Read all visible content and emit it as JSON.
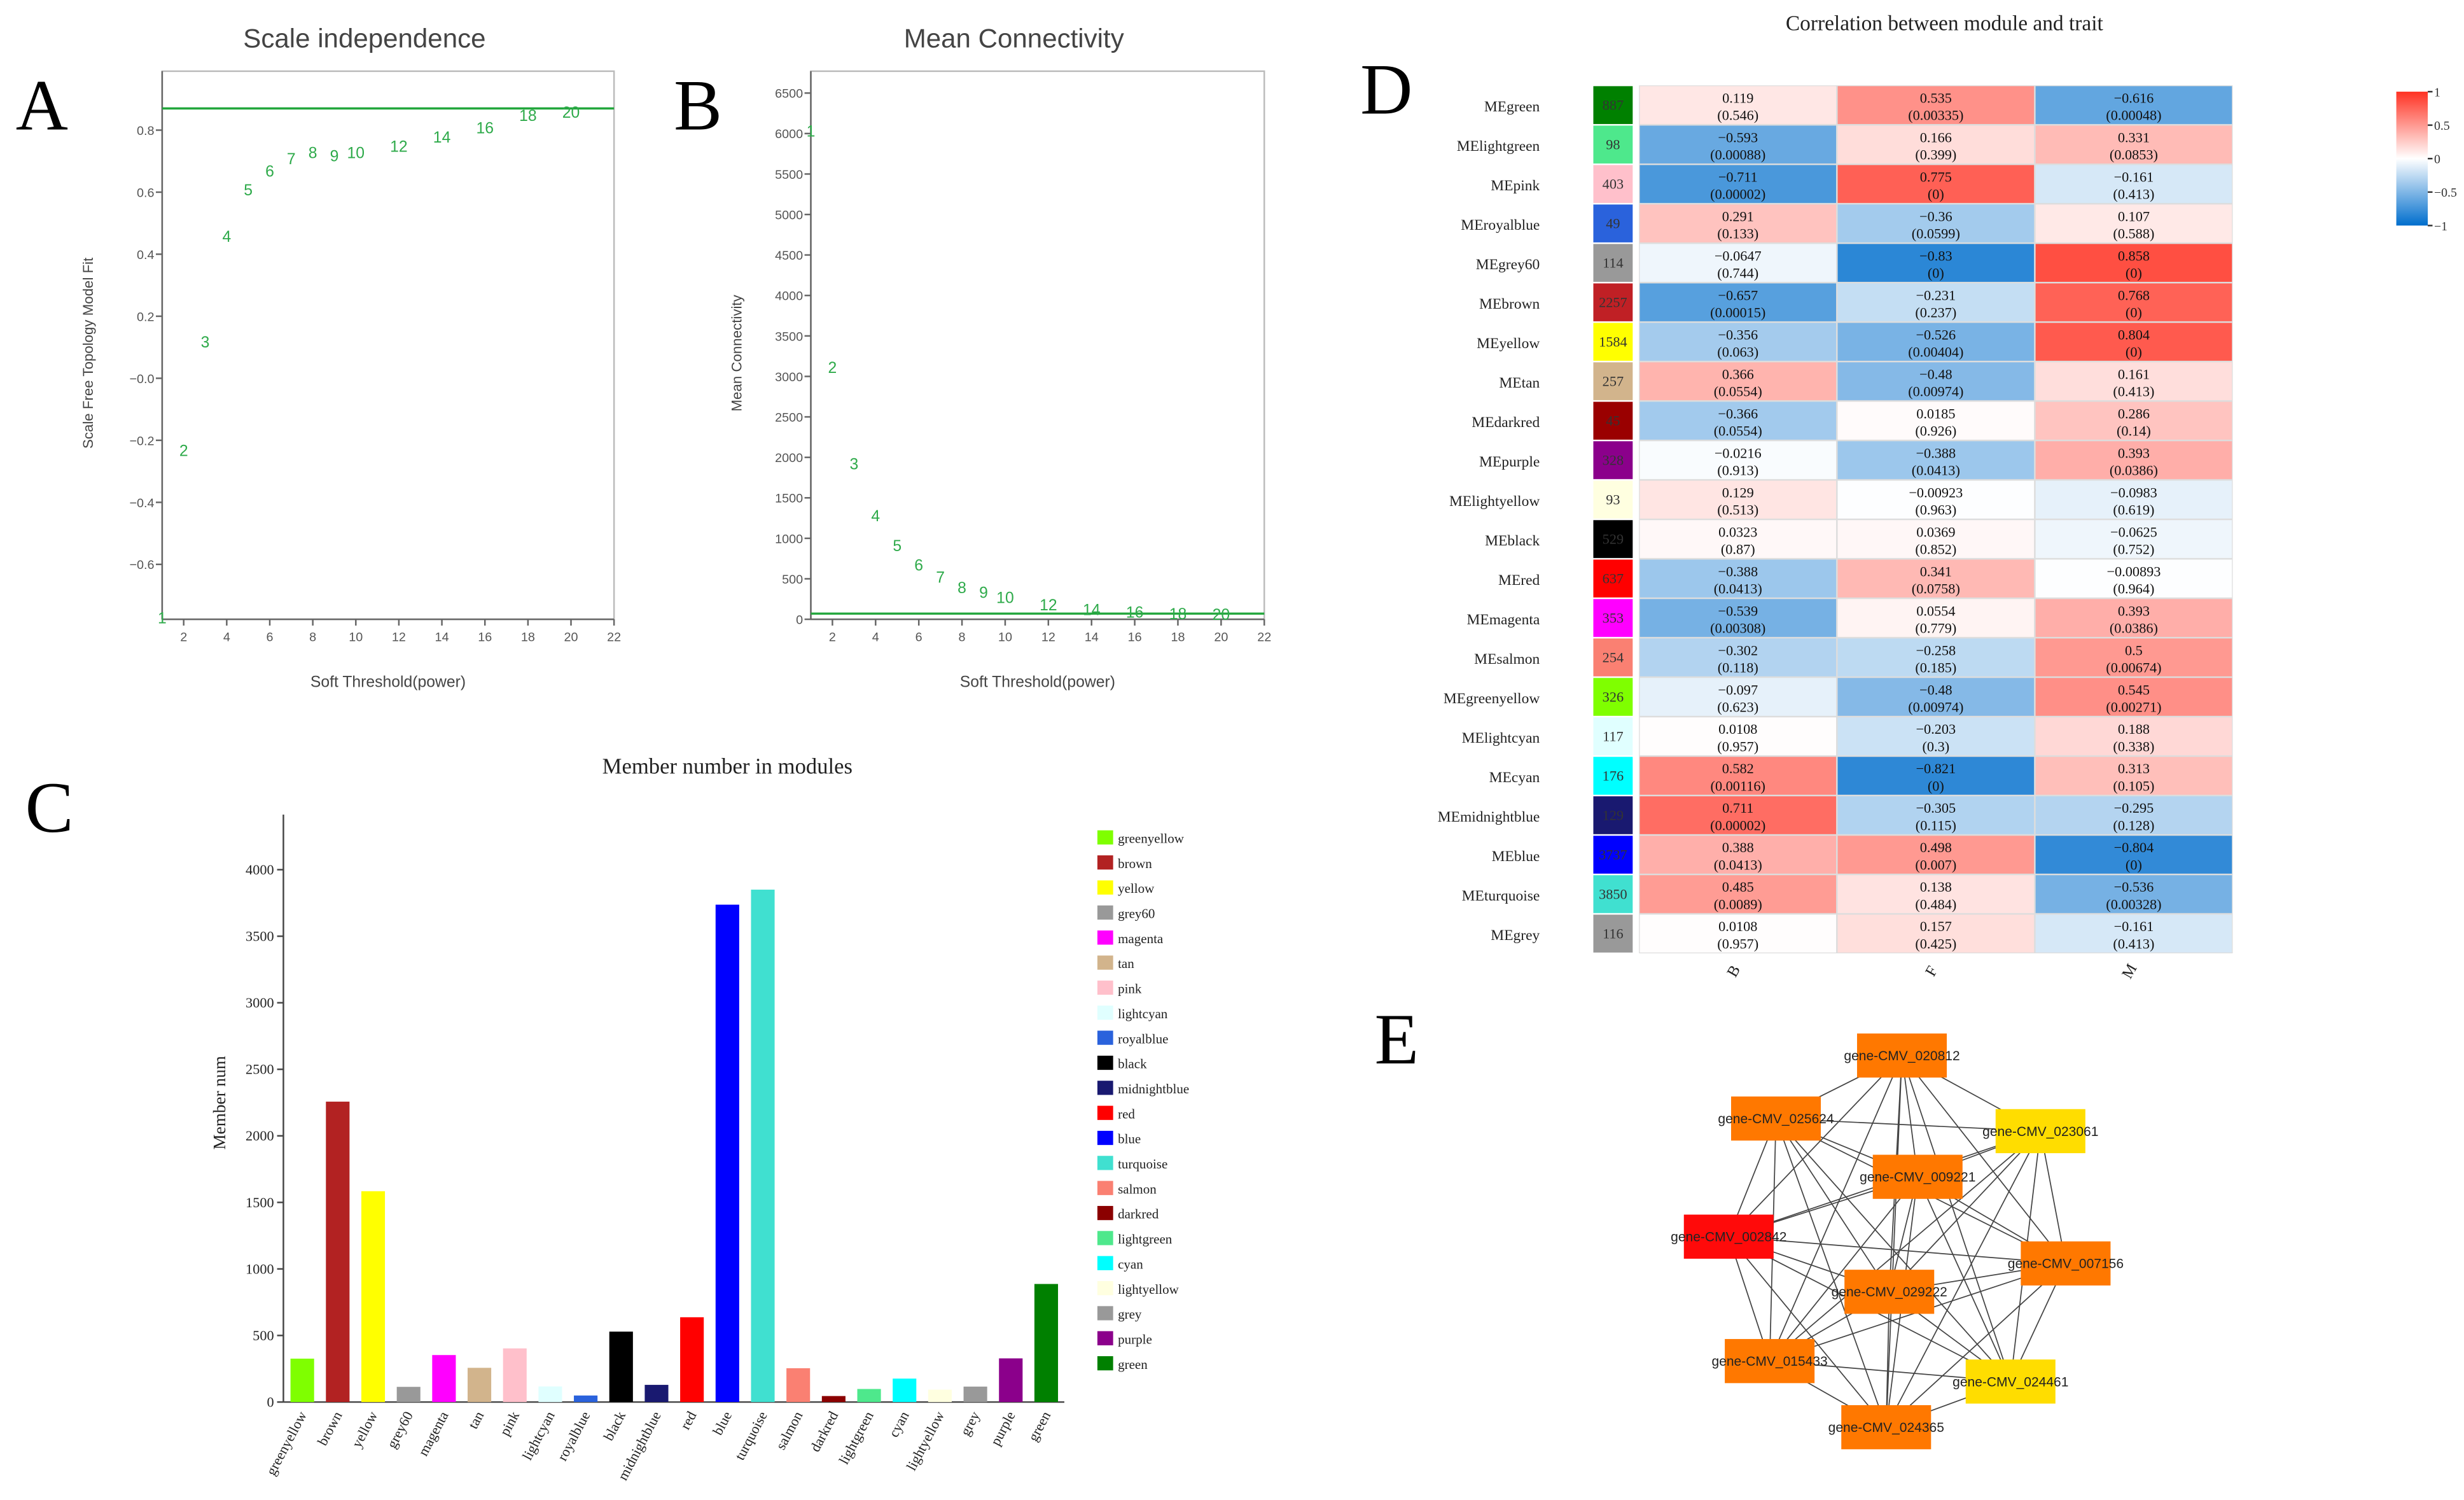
{
  "panel_letters": [
    "A",
    "B",
    "C",
    "D",
    "E"
  ],
  "chart_data": [
    {
      "type": "scatter",
      "title": "Scale independence",
      "xlabel": "Soft Threshold(power)",
      "ylabel": "Scale Free Topology Model Fit",
      "x": [
        1,
        2,
        3,
        4,
        5,
        6,
        7,
        8,
        9,
        10,
        12,
        14,
        16,
        18,
        20
      ],
      "y": [
        -0.77,
        -0.23,
        0.12,
        0.46,
        0.61,
        0.67,
        0.71,
        0.73,
        0.72,
        0.73,
        0.75,
        0.78,
        0.81,
        0.85,
        0.86
      ],
      "xlim": [
        1,
        22
      ],
      "ylim": [
        -0.777,
        0.99
      ],
      "xticks": [
        2,
        4,
        6,
        8,
        10,
        12,
        14,
        16,
        18,
        20,
        22
      ],
      "yticks": [
        0.8,
        0.6,
        0.4,
        0.2,
        0,
        -0.2,
        -0.4,
        -0.6
      ],
      "ytick_labels": [
        "0.8",
        "0.6",
        "0.4",
        "0.2",
        "−0.0",
        "−0.2",
        "−0.4",
        "−0.6"
      ],
      "threshold": 0.87,
      "marker_color": "#2eaa4a",
      "grid": false
    },
    {
      "type": "scatter",
      "title": "Mean Connectivity",
      "xlabel": "Soft Threshold(power)",
      "ylabel": "Mean Connectivity",
      "x": [
        1,
        2,
        3,
        4,
        5,
        6,
        7,
        8,
        9,
        10,
        12,
        14,
        16,
        18,
        20
      ],
      "y": [
        6040,
        3120,
        1930,
        1290,
        920,
        680,
        530,
        400,
        340,
        280,
        190,
        130,
        100,
        80,
        70
      ],
      "xlim": [
        1,
        22
      ],
      "ylim": [
        0,
        6770
      ],
      "xticks": [
        2,
        4,
        6,
        8,
        10,
        12,
        14,
        16,
        18,
        20,
        22
      ],
      "yticks": [
        6500,
        6000,
        5500,
        5000,
        4500,
        4000,
        3500,
        3000,
        2500,
        2000,
        1500,
        1000,
        500,
        0
      ],
      "ytick_labels": [
        "6500",
        "6000",
        "5500",
        "5000",
        "4500",
        "4000",
        "3500",
        "3000",
        "2500",
        "2000",
        "1500",
        "1000",
        "500",
        "0"
      ],
      "threshold": 70,
      "marker_color": "#2eaa4a",
      "grid": false
    },
    {
      "type": "bar",
      "title": "Member number in modules",
      "xlabel": "",
      "ylabel": "Member num",
      "ylim": [
        0,
        4414
      ],
      "yticks": [
        0,
        500,
        1000,
        1500,
        2000,
        2500,
        3000,
        3500,
        4000
      ],
      "ytick_labels": [
        "0",
        "500",
        "1000",
        "1500",
        "2000",
        "2500",
        "3000",
        "3500",
        "4000"
      ],
      "categories": [
        "greenyellow",
        "brown",
        "yellow",
        "grey60",
        "magenta",
        "tan",
        "pink",
        "lightcyan",
        "royalblue",
        "black",
        "midnightblue",
        "red",
        "blue",
        "turquoise",
        "salmon",
        "darkred",
        "lightgreen",
        "cyan",
        "lightyellow",
        "grey",
        "purple",
        "green"
      ],
      "values": [
        326,
        2257,
        1584,
        114,
        353,
        257,
        403,
        117,
        49,
        529,
        129,
        637,
        3737,
        3850,
        254,
        45,
        98,
        176,
        93,
        116,
        328,
        887
      ],
      "colors": [
        "#7fff00",
        "#b22222",
        "#ffff00",
        "#999999",
        "#ff00ff",
        "#d2b48c",
        "#ffc0cb",
        "#e0ffff",
        "#2a62dc",
        "#000000",
        "#191970",
        "#ff0000",
        "#0000ff",
        "#40e0d0",
        "#fa8072",
        "#8b0000",
        "#4ee88c",
        "#00ffff",
        "#ffffe0",
        "#999999",
        "#8b008b",
        "#008000"
      ],
      "legend_position": "right"
    },
    {
      "type": "heatmap",
      "title": "Correlation between module and trait",
      "columns": [
        "B",
        "F",
        "M"
      ],
      "rows": [
        {
          "name": "MEgreen",
          "size": 887,
          "color": "#008000",
          "r": [
            0.119,
            0.535,
            -0.616
          ],
          "p": [
            "(0.546)",
            "(0.00335)",
            "(0.00048)"
          ]
        },
        {
          "name": "MElightgreen",
          "size": 98,
          "color": "#4ee88c",
          "r": [
            -0.593,
            0.166,
            0.331
          ],
          "p": [
            "(0.00088)",
            "(0.399)",
            "(0.0853)"
          ]
        },
        {
          "name": "MEpink",
          "size": 403,
          "color": "#ffc0cb",
          "r": [
            -0.711,
            0.775,
            -0.161
          ],
          "p": [
            "(0.00002)",
            "(0)",
            "(0.413)"
          ]
        },
        {
          "name": "MEroyalblue",
          "size": 49,
          "color": "#2a62dc",
          "r": [
            0.291,
            -0.36,
            0.107
          ],
          "p": [
            "(0.133)",
            "(0.0599)",
            "(0.588)"
          ]
        },
        {
          "name": "MEgrey60",
          "size": 114,
          "color": "#999999",
          "r": [
            -0.0647,
            -0.83,
            0.858
          ],
          "p": [
            "(0.744)",
            "(0)",
            "(0)"
          ]
        },
        {
          "name": "MEbrown",
          "size": 2257,
          "color": "#c02025",
          "r": [
            -0.657,
            -0.231,
            0.768
          ],
          "p": [
            "(0.00015)",
            "(0.237)",
            "(0)"
          ]
        },
        {
          "name": "MEyellow",
          "size": 1584,
          "color": "#ffff00",
          "r": [
            -0.356,
            -0.526,
            0.804
          ],
          "p": [
            "(0.063)",
            "(0.00404)",
            "(0)"
          ]
        },
        {
          "name": "MEtan",
          "size": 257,
          "color": "#d2b48c",
          "r": [
            0.366,
            -0.48,
            0.161
          ],
          "p": [
            "(0.0554)",
            "(0.00974)",
            "(0.413)"
          ]
        },
        {
          "name": "MEdarkred",
          "size": 45,
          "color": "#9a0000",
          "r": [
            -0.366,
            0.0185,
            0.286
          ],
          "p": [
            "(0.0554)",
            "(0.926)",
            "(0.14)"
          ]
        },
        {
          "name": "MEpurple",
          "size": 328,
          "color": "#8b008b",
          "r": [
            -0.0216,
            -0.388,
            0.393
          ],
          "p": [
            "(0.913)",
            "(0.0413)",
            "(0.0386)"
          ]
        },
        {
          "name": "MElightyellow",
          "size": 93,
          "color": "#ffffe0",
          "r": [
            0.129,
            -0.00923,
            -0.0983
          ],
          "p": [
            "(0.513)",
            "(0.963)",
            "(0.619)"
          ]
        },
        {
          "name": "MEblack",
          "size": 529,
          "color": "#000000",
          "r": [
            0.0323,
            0.0369,
            -0.0625
          ],
          "p": [
            "(0.87)",
            "(0.852)",
            "(0.752)"
          ]
        },
        {
          "name": "MEred",
          "size": 637,
          "color": "#ff0000",
          "r": [
            -0.388,
            0.341,
            -0.00893
          ],
          "p": [
            "(0.0413)",
            "(0.0758)",
            "(0.964)"
          ]
        },
        {
          "name": "MEmagenta",
          "size": 353,
          "color": "#ff00ff",
          "r": [
            -0.539,
            0.0554,
            0.393
          ],
          "p": [
            "(0.00308)",
            "(0.779)",
            "(0.0386)"
          ]
        },
        {
          "name": "MEsalmon",
          "size": 254,
          "color": "#fa8072",
          "r": [
            -0.302,
            -0.258,
            0.5
          ],
          "p": [
            "(0.118)",
            "(0.185)",
            "(0.00674)"
          ]
        },
        {
          "name": "MEgreenyellow",
          "size": 326,
          "color": "#7fff00",
          "r": [
            -0.097,
            -0.48,
            0.545
          ],
          "p": [
            "(0.623)",
            "(0.00974)",
            "(0.00271)"
          ]
        },
        {
          "name": "MElightcyan",
          "size": 117,
          "color": "#e0ffff",
          "r": [
            0.0108,
            -0.203,
            0.188
          ],
          "p": [
            "(0.957)",
            "(0.3)",
            "(0.338)"
          ]
        },
        {
          "name": "MEcyan",
          "size": 176,
          "color": "#00ffff",
          "r": [
            0.582,
            -0.821,
            0.313
          ],
          "p": [
            "(0.00116)",
            "(0)",
            "(0.105)"
          ]
        },
        {
          "name": "MEmidnightblue",
          "size": 129,
          "color": "#191970",
          "r": [
            0.711,
            -0.305,
            -0.295
          ],
          "p": [
            "(0.00002)",
            "(0.115)",
            "(0.128)"
          ]
        },
        {
          "name": "MEblue",
          "size": 3737,
          "color": "#0000ff",
          "r": [
            0.388,
            0.498,
            -0.804
          ],
          "p": [
            "(0.0413)",
            "(0.007)",
            "(0)"
          ]
        },
        {
          "name": "MEturquoise",
          "size": 3850,
          "color": "#40e0d0",
          "r": [
            0.485,
            0.138,
            -0.536
          ],
          "p": [
            "(0.0089)",
            "(0.484)",
            "(0.00328)"
          ]
        },
        {
          "name": "MEgrey",
          "size": 116,
          "color": "#999999",
          "r": [
            0.0108,
            0.157,
            -0.161
          ],
          "p": [
            "(0.957)",
            "(0.425)",
            "(0.413)"
          ]
        }
      ],
      "colorbar": {
        "ticks": [
          1,
          0.5,
          0,
          -0.5,
          -1
        ],
        "tick_labels": [
          "1",
          "0.5",
          "0",
          "−0.5",
          "−1"
        ],
        "low_color": "#006ecd",
        "mid_color": "#ffffff",
        "high_color": "#ff3223"
      }
    },
    {
      "type": "network",
      "nodes": [
        {
          "label": "gene-CMV_020812",
          "color": "#ff7800"
        },
        {
          "label": "gene-CMV_025624",
          "color": "#ff7800"
        },
        {
          "label": "gene-CMV_023061",
          "color": "#ffdd00"
        },
        {
          "label": "gene-CMV_009221",
          "color": "#ff7800"
        },
        {
          "label": "gene-CMV_002842",
          "color": "#ff0a0a"
        },
        {
          "label": "gene-CMV_007156",
          "color": "#ff7800"
        },
        {
          "label": "gene-CMV_029222",
          "color": "#ff7800"
        },
        {
          "label": "gene-CMV_015433",
          "color": "#ff7800"
        },
        {
          "label": "gene-CMV_024461",
          "color": "#ffdd00"
        },
        {
          "label": "gene-CMV_024365",
          "color": "#ff7800"
        }
      ],
      "fully_connected": true,
      "edge_color": "#444444"
    }
  ]
}
